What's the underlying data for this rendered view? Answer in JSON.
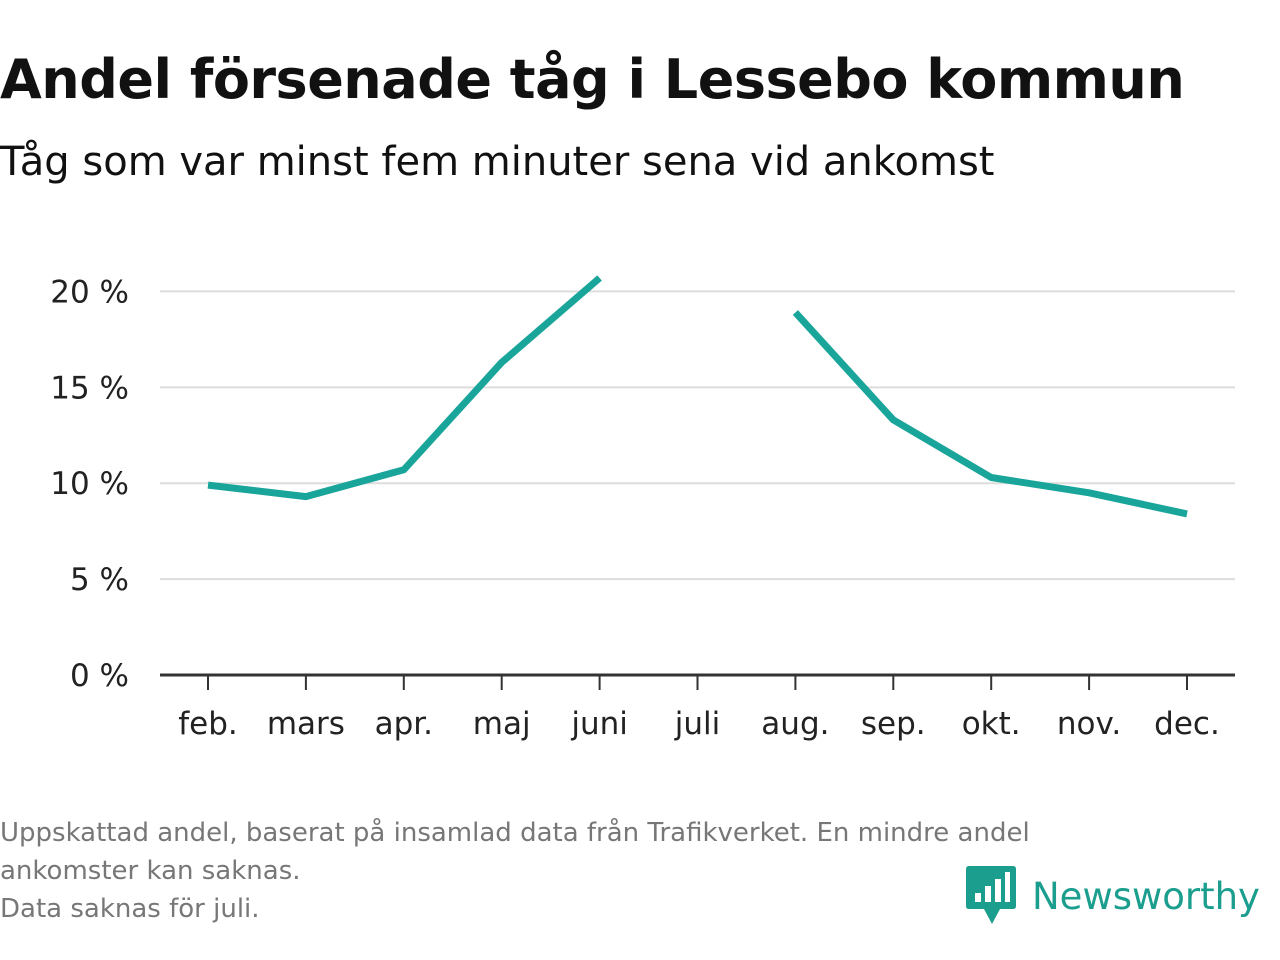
{
  "header": {
    "title": "Andel försenade tåg i Lessebo kommun",
    "subtitle": "Tåg som var minst fem minuter sena vid ankomst"
  },
  "chart_data": {
    "type": "line",
    "categories": [
      "feb.",
      "mars",
      "apr.",
      "maj",
      "juni",
      "juli",
      "aug.",
      "sep.",
      "okt.",
      "nov.",
      "dec."
    ],
    "series": [
      {
        "values": [
          9.9,
          9.3,
          10.7,
          16.3,
          20.7,
          null,
          18.9,
          13.3,
          10.3,
          9.5,
          8.4
        ],
        "color": "#1aa59b"
      }
    ],
    "y_ticks": [
      0,
      5,
      10,
      15,
      20
    ],
    "y_tick_labels": [
      "0 %",
      "5 %",
      "10 %",
      "15 %",
      "20 %"
    ],
    "ylim": [
      0,
      20.7
    ],
    "grid": true,
    "xlabel": "",
    "ylabel": ""
  },
  "footnote": {
    "line1": "Uppskattad andel, baserat på insamlad data från Trafikverket. En mindre andel",
    "line2": "ankomster kan saknas.",
    "line3": "Data saknas för juli."
  },
  "brand": {
    "name": "Newsworthy",
    "icon": "newsworthy-logo-icon",
    "color": "#1b9e8e"
  }
}
